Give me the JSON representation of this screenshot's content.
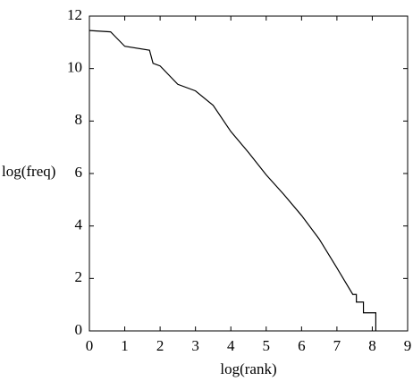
{
  "chart_data": {
    "type": "line",
    "xlabel": "log(rank)",
    "ylabel": "log(freq)",
    "x": [
      0,
      0.6,
      1.0,
      1.7,
      1.8,
      2.0,
      2.5,
      3.0,
      3.5,
      4.0,
      4.5,
      5.0,
      5.5,
      6.0,
      6.5,
      7.0,
      7.2,
      7.45,
      7.55,
      7.55,
      7.75,
      7.75,
      8.1,
      8.1
    ],
    "values": [
      11.45,
      11.4,
      10.85,
      10.7,
      10.2,
      10.1,
      9.4,
      9.15,
      8.6,
      7.6,
      6.8,
      5.95,
      5.2,
      4.4,
      3.5,
      2.4,
      1.95,
      1.39,
      1.39,
      1.1,
      1.1,
      0.69,
      0.69,
      0
    ],
    "color": "#000000",
    "xlim": [
      0,
      9
    ],
    "xticks": [
      0,
      1,
      2,
      3,
      4,
      5,
      6,
      7,
      8,
      9
    ],
    "ylim": [
      0,
      12
    ],
    "yticks": [
      0,
      2,
      4,
      6,
      8,
      10,
      12
    ]
  }
}
